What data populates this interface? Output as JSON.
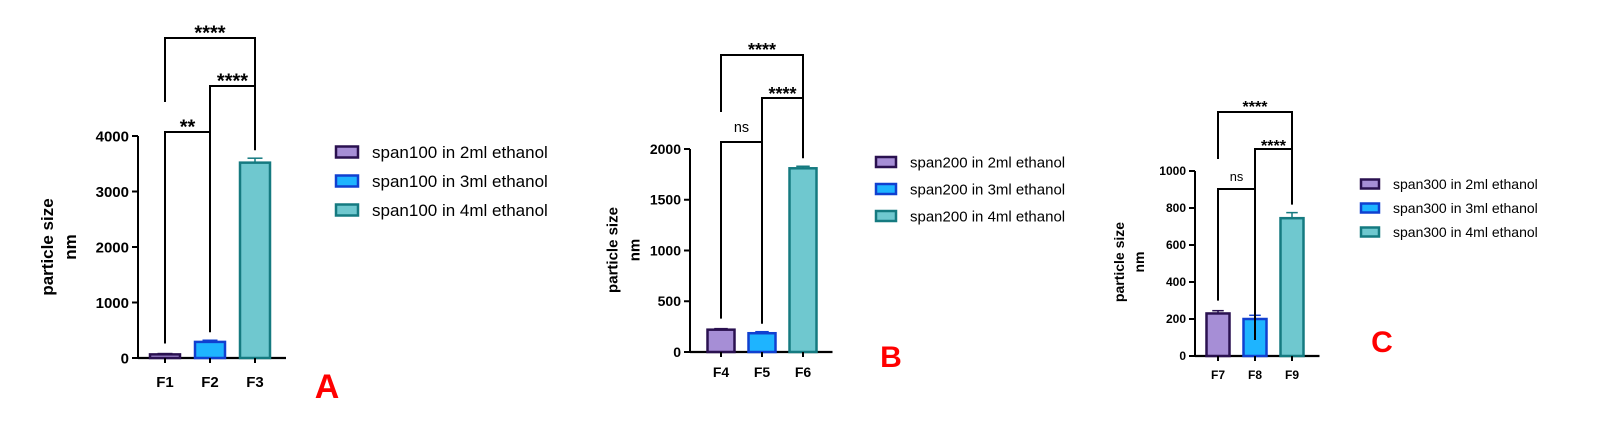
{
  "colors": {
    "purple": "#a68ed6",
    "blue": "#1eb4ff",
    "teal": "#6fc8cf",
    "axis": "#000000",
    "panel_letter": "#ff0000"
  },
  "chart_data": [
    {
      "type": "bar",
      "panel": "A",
      "ylabel_lines": [
        "particle size",
        "nm"
      ],
      "categories": [
        "F1",
        "F2",
        "F3"
      ],
      "values": [
        65,
        290,
        3520
      ],
      "errors": [
        15,
        30,
        80
      ],
      "yticks": [
        0,
        1000,
        2000,
        3000,
        4000
      ],
      "ylim": [
        0,
        4000
      ],
      "legend": [
        "span100 in 2ml ethanol",
        "span100 in 3ml ethanol",
        "span100 in 4ml ethanol"
      ],
      "brackets": [
        {
          "from": 0,
          "to": 1,
          "label": "**"
        },
        {
          "from": 1,
          "to": 2,
          "label": "****"
        },
        {
          "from": 0,
          "to": 2,
          "label": "****"
        }
      ]
    },
    {
      "type": "bar",
      "panel": "B",
      "ylabel_lines": [
        "particle size",
        "nm"
      ],
      "categories": [
        "F4",
        "F5",
        "F6"
      ],
      "values": [
        220,
        185,
        1810
      ],
      "errors": [
        10,
        15,
        20
      ],
      "yticks": [
        0,
        500,
        1000,
        1500,
        2000
      ],
      "ylim": [
        0,
        2000
      ],
      "legend": [
        "span200 in 2ml ethanol",
        "span200 in 3ml ethanol",
        "span200 in 4ml ethanol"
      ],
      "brackets": [
        {
          "from": 0,
          "to": 1,
          "label": "ns"
        },
        {
          "from": 1,
          "to": 2,
          "label": "****"
        },
        {
          "from": 0,
          "to": 2,
          "label": "****"
        }
      ]
    },
    {
      "type": "bar",
      "panel": "C",
      "ylabel_lines": [
        "particle size",
        "nm"
      ],
      "categories": [
        "F7",
        "F8",
        "F9"
      ],
      "values": [
        230,
        200,
        745
      ],
      "errors": [
        15,
        20,
        30
      ],
      "yticks": [
        0,
        200,
        400,
        600,
        800,
        1000
      ],
      "ylim": [
        0,
        1000
      ],
      "legend": [
        "span300 in 2ml ethanol",
        "span300 in 3ml ethanol",
        "span300 in 4ml ethanol"
      ],
      "brackets": [
        {
          "from": 0,
          "to": 1,
          "label": "ns"
        },
        {
          "from": 1,
          "to": 2,
          "label": "****"
        },
        {
          "from": 0,
          "to": 2,
          "label": "****"
        }
      ]
    }
  ]
}
